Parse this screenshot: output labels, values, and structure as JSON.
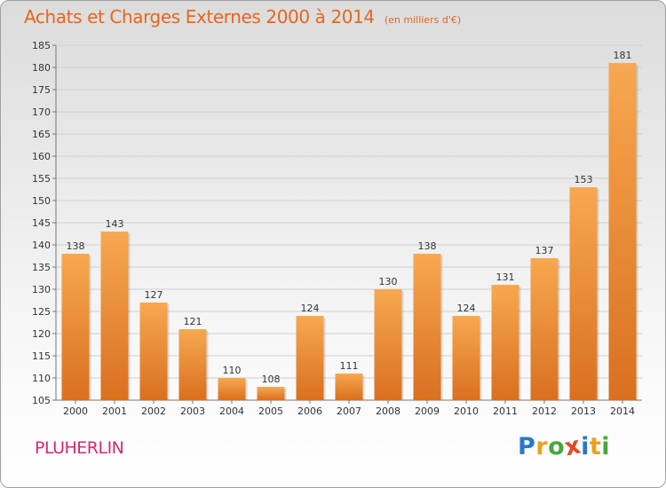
{
  "header": {
    "title": "Achats et Charges Externes 2000 à 2014",
    "subtitle": "(en milliers d'€)"
  },
  "footer": {
    "commune": "PLUHERLIN",
    "logo_letters": [
      "P",
      "r",
      "o",
      "x",
      "i",
      "t",
      "i"
    ],
    "logo_colors": [
      "#2b78c5",
      "#e9a31b",
      "#48a83d",
      "#e24a2b",
      "#2b78c5",
      "#e9a31b",
      "#48a83d"
    ]
  },
  "colors": {
    "bar_top": "#f7a850",
    "bar_bottom": "#d9701f",
    "title": "#e8651e",
    "commune": "#d6277a"
  },
  "chart_data": {
    "type": "bar",
    "title": "Achats et Charges Externes 2000 à 2014",
    "subtitle": "(en milliers d'€)",
    "xlabel": "",
    "ylabel": "",
    "categories": [
      "2000",
      "2001",
      "2002",
      "2003",
      "2004",
      "2005",
      "2006",
      "2007",
      "2008",
      "2009",
      "2010",
      "2011",
      "2012",
      "2013",
      "2014"
    ],
    "values": [
      138,
      143,
      127,
      121,
      110,
      108,
      124,
      111,
      130,
      138,
      124,
      131,
      137,
      153,
      181
    ],
    "ylim": [
      105,
      185
    ],
    "yticks": [
      105,
      110,
      115,
      120,
      125,
      130,
      135,
      140,
      145,
      150,
      155,
      160,
      165,
      170,
      175,
      180,
      185
    ],
    "grid": true,
    "legend": "none"
  }
}
